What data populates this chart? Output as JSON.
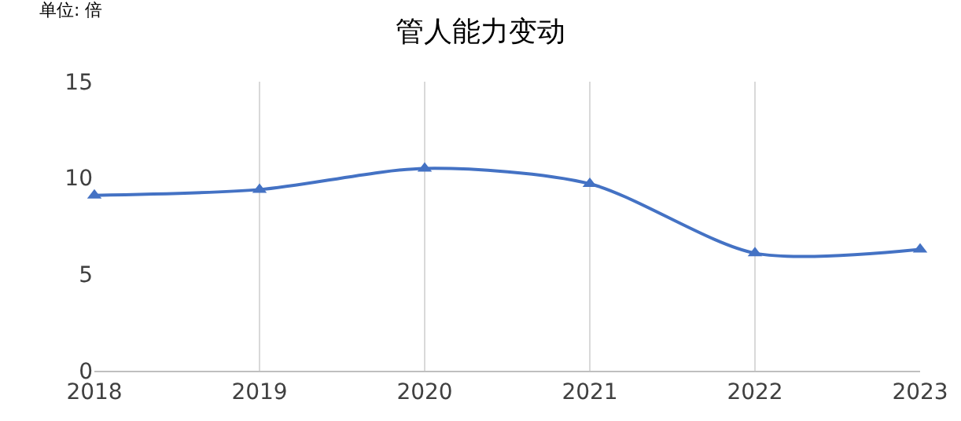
{
  "chart_data": {
    "type": "line",
    "title": "管人能力变动",
    "annotations": [
      "单位: 倍"
    ],
    "x": [
      2018,
      2019,
      2020,
      2021,
      2022,
      2023
    ],
    "series": [
      {
        "color": "#4472c4",
        "values": [
          9.1,
          9.4,
          10.5,
          9.7,
          6.1,
          6.3
        ]
      }
    ],
    "xlim": [
      2018,
      2023
    ],
    "xticks": [
      2018,
      2019,
      2020,
      2021,
      2022,
      2023
    ],
    "ylim": [
      0,
      15
    ],
    "yticks": [
      0,
      5,
      10,
      15
    ],
    "grid": "x",
    "marker": "triangle",
    "line_style": "solid"
  }
}
